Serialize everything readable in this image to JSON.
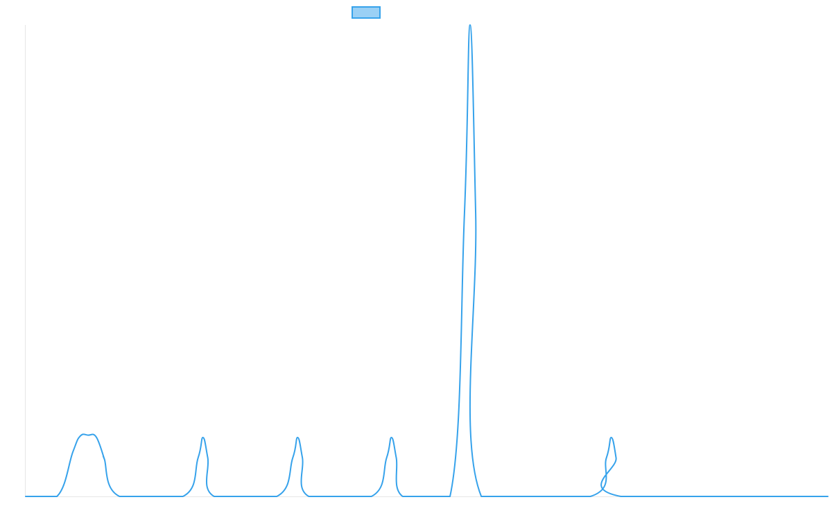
{
  "chart_data": {
    "type": "line",
    "title": "",
    "xlabel": "",
    "ylabel": "",
    "grid": false,
    "legend": "top-center",
    "x_range": [
      0,
      100
    ],
    "y_range": [
      0,
      100
    ],
    "series": [
      {
        "color": "#36a2eb",
        "fill": "#9ad0f5",
        "points": [
          [
            0,
            0
          ],
          [
            3.9,
            0
          ],
          [
            5.9,
            9.5
          ],
          [
            6.8,
            12.8
          ],
          [
            7.8,
            13.0
          ],
          [
            8.8,
            12.6
          ],
          [
            9.8,
            8.0
          ],
          [
            9.8,
            8.0
          ],
          [
            11.7,
            0
          ],
          [
            19.6,
            0
          ],
          [
            21.5,
            8.2
          ],
          [
            22.1,
            12.5
          ],
          [
            22.7,
            8.2
          ],
          [
            23.5,
            0
          ],
          [
            31.3,
            0
          ],
          [
            33.3,
            8.2
          ],
          [
            33.9,
            12.5
          ],
          [
            34.5,
            8.2
          ],
          [
            35.3,
            0
          ],
          [
            43.1,
            0
          ],
          [
            45.0,
            8.2
          ],
          [
            45.6,
            12.5
          ],
          [
            46.2,
            8.2
          ],
          [
            47.0,
            0
          ],
          [
            52.9,
            0
          ],
          [
            54.7,
            60
          ],
          [
            55.4,
            100
          ],
          [
            56.1,
            60
          ],
          [
            56.8,
            0
          ],
          [
            70.4,
            0
          ],
          [
            72.4,
            8.2
          ],
          [
            73.0,
            12.5
          ],
          [
            73.6,
            8.2
          ],
          [
            74.2,
            0
          ],
          [
            100,
            0
          ]
        ]
      }
    ]
  }
}
